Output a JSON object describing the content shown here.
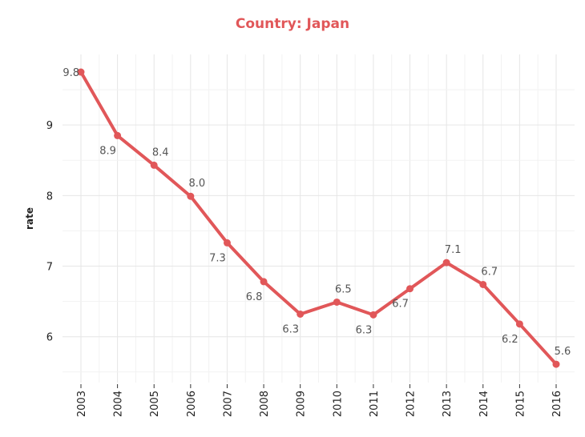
{
  "title": "Country:  Japan",
  "chart_data": {
    "type": "line",
    "title": "Country:  Japan",
    "xlabel": "",
    "ylabel": "rate",
    "x": [
      "2003",
      "2004",
      "2005",
      "2006",
      "2007",
      "2008",
      "2009",
      "2010",
      "2011",
      "2012",
      "2013",
      "2014",
      "2015",
      "2016"
    ],
    "series": [
      {
        "values": [
          9.75,
          8.85,
          8.43,
          7.99,
          7.33,
          6.78,
          6.32,
          6.49,
          6.31,
          6.68,
          7.05,
          6.74,
          6.18,
          5.61
        ],
        "labels": [
          "9.8",
          "8.9",
          "8.4",
          "8.0",
          "7.3",
          "6.8",
          "6.3",
          "6.5",
          "6.3",
          "6.7",
          "7.1",
          "6.7",
          "6.2",
          "5.6"
        ],
        "label_pos": [
          "left",
          "below",
          "above",
          "above",
          "below",
          "below",
          "below",
          "above",
          "below",
          "below",
          "above",
          "above",
          "below",
          "above"
        ]
      }
    ],
    "yticks": [
      6,
      7,
      8,
      9
    ],
    "ylim": [
      5.35,
      10.0
    ],
    "grid": true,
    "legend": "none",
    "color": "#e15759"
  }
}
